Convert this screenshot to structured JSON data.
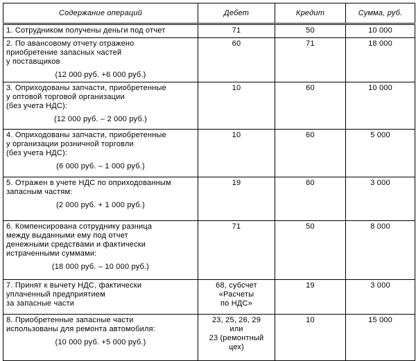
{
  "headers": [
    "Содержание операций",
    "Дебет",
    "Кредит",
    "Сумма, руб."
  ],
  "rows": [
    {
      "text": [
        "1. Сотрудником получены деньги под отчет"
      ],
      "calc": "",
      "debit": [
        "71"
      ],
      "credit": "50",
      "sum": "10 000"
    },
    {
      "text": [
        "2. По авансовому отчету отражено",
        "приобретение запасных частей",
        "у поставщиков"
      ],
      "calc": "(12 000 руб. +6 000 руб.)",
      "debit": [
        "60"
      ],
      "credit": "71",
      "sum": "18 000"
    },
    {
      "text": [
        "3. Оприходованы запчасти, приобретенные",
        "у оптовой торговой организации",
        "(без учета НДС):"
      ],
      "calc": "(12 000 руб. – 2 000 руб.)",
      "debit": [
        "10"
      ],
      "credit": "60",
      "sum": "10 000"
    },
    {
      "text": [
        "4. Оприходованы запчасти, приобретенные",
        "у организации розничной торговли",
        "(без учета НДС):"
      ],
      "calc": "(6 000 руб. – 1 000 руб.)",
      "debit": [
        "10"
      ],
      "credit": "60",
      "sum": "5 000"
    },
    {
      "text": [
        "5. Отражен в учете НДС по оприходованным",
        "запасным частям:"
      ],
      "calc": "(2 000 руб. + 1 000 руб.)",
      "debit": [
        "19"
      ],
      "credit": "60",
      "sum": "3 000"
    },
    {
      "text": [
        "6. Компенсирована сотруднику разница",
        "между выданными ему под отчет",
        "денежными средствами и фактически",
        "истраченными суммами:"
      ],
      "calc": "(18 000 руб. – 10 000 руб.)",
      "debit": [
        "71"
      ],
      "credit": "50",
      "sum": "8 000"
    },
    {
      "text": [
        "7. Принят к вычету НДС, фактически",
        "уплаченный предприятием",
        "за запасные части"
      ],
      "calc": "",
      "debit": [
        "68, субсчет",
        "«Расчеты",
        "по НДС»"
      ],
      "credit": "19",
      "sum": "3 000"
    },
    {
      "text": [
        "8. Приобретенные запасные части",
        "использованы для ремонта автомобиля:"
      ],
      "calc": "(10 000 руб. +5 000 руб.)",
      "debit": [
        "23, 25, 26, 29",
        "или",
        "23 (ремонтный",
        "цех)"
      ],
      "credit": "10",
      "sum": "15 000"
    }
  ]
}
